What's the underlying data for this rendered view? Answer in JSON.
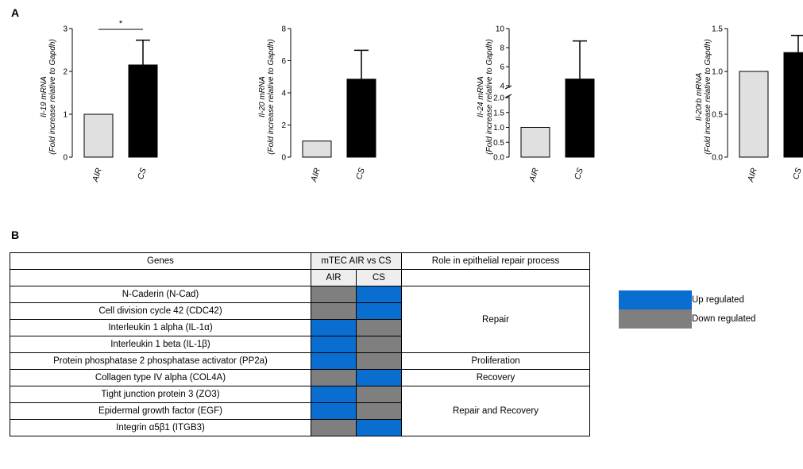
{
  "panel_a_letter": "A",
  "panel_b_letter": "B",
  "chart_data": [
    {
      "type": "bar",
      "categories": [
        "AIR",
        "CS"
      ],
      "values": [
        1.0,
        2.15
      ],
      "errors": [
        0,
        0.58
      ],
      "ylabel": "Il-19 mRNA",
      "ylabel2": "(Fold increase relative to Gapdh)",
      "ylim": [
        0,
        3
      ],
      "yticks": [
        0,
        1,
        2,
        3
      ],
      "ytick_labels": [
        "0",
        "1",
        "2",
        "3"
      ],
      "significance": "*",
      "colors": [
        "#e0e0e0",
        "#000000"
      ]
    },
    {
      "type": "bar",
      "categories": [
        "AIR",
        "CS"
      ],
      "values": [
        1.0,
        4.85
      ],
      "errors": [
        0,
        1.8
      ],
      "ylabel": "Il-20 mRNA",
      "ylabel2": "(Fold increase relative to Gapdh)",
      "ylim": [
        0,
        8
      ],
      "yticks": [
        0,
        2,
        4,
        6,
        8
      ],
      "ytick_labels": [
        "0",
        "2",
        "4",
        "6",
        "8"
      ],
      "colors": [
        "#e0e0e0",
        "#000000"
      ]
    },
    {
      "type": "bar",
      "categories": [
        "AIR",
        "CS"
      ],
      "values": [
        1.0,
        4.7
      ],
      "errors": [
        0,
        4.0
      ],
      "ylabel": "Il-24 mRNA",
      "ylabel2": "(Fold increase relative to Gapdh)",
      "ylim": [
        0,
        10
      ],
      "axis_break": [
        2.0,
        4.0
      ],
      "yticks": [
        0,
        0.5,
        1.0,
        1.5,
        2.0,
        4,
        6,
        8,
        10
      ],
      "ytick_labels": [
        "0.0",
        "0.5",
        "1.0",
        "1.5",
        "2.0",
        "4",
        "6",
        "8",
        "10"
      ],
      "colors": [
        "#e0e0e0",
        "#000000"
      ]
    },
    {
      "type": "bar",
      "categories": [
        "AIR",
        "CS"
      ],
      "values": [
        1.0,
        1.22
      ],
      "errors": [
        0,
        0.2
      ],
      "ylabel": "Il-20rb mRNA",
      "ylabel2": "(Fold increase relative to Gapdh)",
      "ylim": [
        0,
        1.5
      ],
      "yticks": [
        0,
        0.5,
        1.0,
        1.5
      ],
      "ytick_labels": [
        "0.0",
        "0.5",
        "1.0",
        "1.5"
      ],
      "colors": [
        "#e0e0e0",
        "#000000"
      ]
    }
  ],
  "table": {
    "header": {
      "genes": "Genes",
      "group": "mTEC AIR vs CS",
      "role": "Role in epithelial repair process",
      "air": "AIR",
      "cs": "CS"
    },
    "rows": [
      {
        "gene": "N-Caderin (N-Cad)",
        "air": "down",
        "cs": "up"
      },
      {
        "gene": "Cell division cycle 42 (CDC42)",
        "air": "down",
        "cs": "up"
      },
      {
        "gene": "Interleukin 1 alpha (IL-1α)",
        "air": "up",
        "cs": "down"
      },
      {
        "gene": "Interleukin 1 beta (IL-1β)",
        "air": "up",
        "cs": "down"
      },
      {
        "gene": "Protein phosphatase 2 phosphatase activator (PP2a)",
        "air": "up",
        "cs": "down"
      },
      {
        "gene": "Collagen type IV alpha (COL4A)",
        "air": "down",
        "cs": "up"
      },
      {
        "gene": "Tight junction protein 3 (ZO3)",
        "air": "up",
        "cs": "down"
      },
      {
        "gene": "Epidermal growth factor (EGF)",
        "air": "up",
        "cs": "down"
      },
      {
        "gene": "Integrin α5β1 (ITGB3)",
        "air": "down",
        "cs": "up"
      }
    ],
    "roles": [
      {
        "label": "Repair",
        "rows": 4
      },
      {
        "label": "Proliferation",
        "rows": 1
      },
      {
        "label": "Recovery",
        "rows": 1
      },
      {
        "label": "Repair and Recovery",
        "rows": 3
      }
    ]
  },
  "legend": {
    "up_label": "Up regulated",
    "down_label": "Down regulated",
    "up_color": "#0a6ed1",
    "down_color": "#7f7f7f"
  }
}
